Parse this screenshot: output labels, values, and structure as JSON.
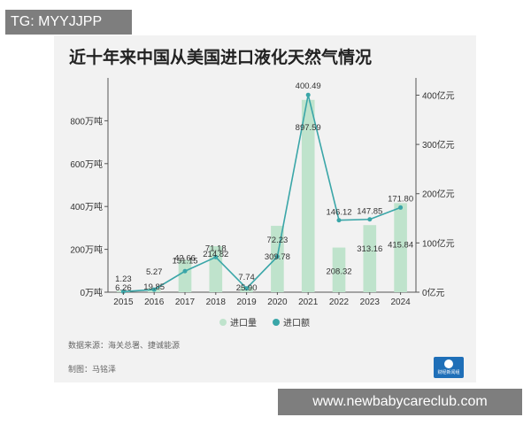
{
  "watermark_top": "TG: MYYJJPP",
  "watermark_bottom": "www.newbabycareclub.com",
  "source_note": "数据来源：海关总署、捷诚能源",
  "maker_note": "制图：马铭泽",
  "logo_text": "财经新闻组",
  "colors": {
    "bar": "#bfe3cc",
    "line": "#3aa6a8",
    "card": "#f2f2f2"
  },
  "chart_data": {
    "type": "bar",
    "title": "近十年来中国从美国进口液化天然气情况",
    "categories": [
      "2015",
      "2016",
      "2017",
      "2018",
      "2019",
      "2020",
      "2021",
      "2022",
      "2023",
      "2024"
    ],
    "series": [
      {
        "name": "进口量",
        "type": "bar",
        "axis": "left",
        "values": [
          6.26,
          19.85,
          151.15,
          214.82,
          25.9,
          309.78,
          897.59,
          208.32,
          313.16,
          415.84
        ],
        "labels": [
          "6.26",
          "19.85",
          "151.15",
          "214.82",
          "25.90",
          "309.78",
          "897.59",
          "208.32",
          "313.16",
          "415.84"
        ]
      },
      {
        "name": "进口额",
        "type": "line",
        "axis": "right",
        "values": [
          1.23,
          5.27,
          42.66,
          71.18,
          7.74,
          72.23,
          400.49,
          146.12,
          147.85,
          171.8
        ],
        "labels": [
          "1.23",
          "5.27",
          "42.66",
          "71.18",
          "7.74",
          "72.23",
          "400.49",
          "146.12",
          "147.85",
          "171.80"
        ]
      }
    ],
    "ylim_left": [
      0,
      1000
    ],
    "yticks_left": [
      {
        "value": 0,
        "label": "0万吨"
      },
      {
        "value": 200,
        "label": "200万吨"
      },
      {
        "value": 400,
        "label": "400万吨"
      },
      {
        "value": 600,
        "label": "600万吨"
      },
      {
        "value": 800,
        "label": "800万吨"
      }
    ],
    "ylim_right": [
      0,
      435
    ],
    "yticks_right": [
      {
        "value": 0,
        "label": "0亿元"
      },
      {
        "value": 100,
        "label": "100亿元"
      },
      {
        "value": 200,
        "label": "200亿元"
      },
      {
        "value": 300,
        "label": "300亿元"
      },
      {
        "value": 400,
        "label": "400亿元"
      }
    ],
    "legend_position": "bottom",
    "grid": false
  }
}
